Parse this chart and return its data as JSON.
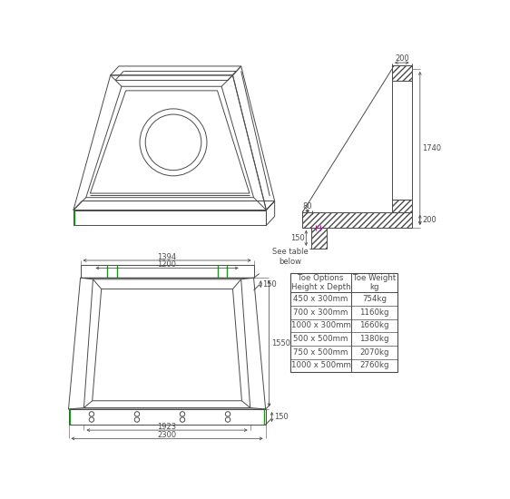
{
  "bg_color": "#ffffff",
  "line_color": "#4a4a4a",
  "green_color": "#00aa00",
  "magenta_color": "#cc00cc",
  "table_rows": [
    [
      "450 x 300mm",
      "754kg"
    ],
    [
      "700 x 300mm",
      "1160kg"
    ],
    [
      "1000 x 300mm",
      "1660kg"
    ],
    [
      "500 x 500mm",
      "1380kg"
    ],
    [
      "750 x 500mm",
      "2070kg"
    ],
    [
      "1000 x 500mm",
      "2760kg"
    ]
  ],
  "font_size_dim": 6.0,
  "font_size_table": 6.2
}
